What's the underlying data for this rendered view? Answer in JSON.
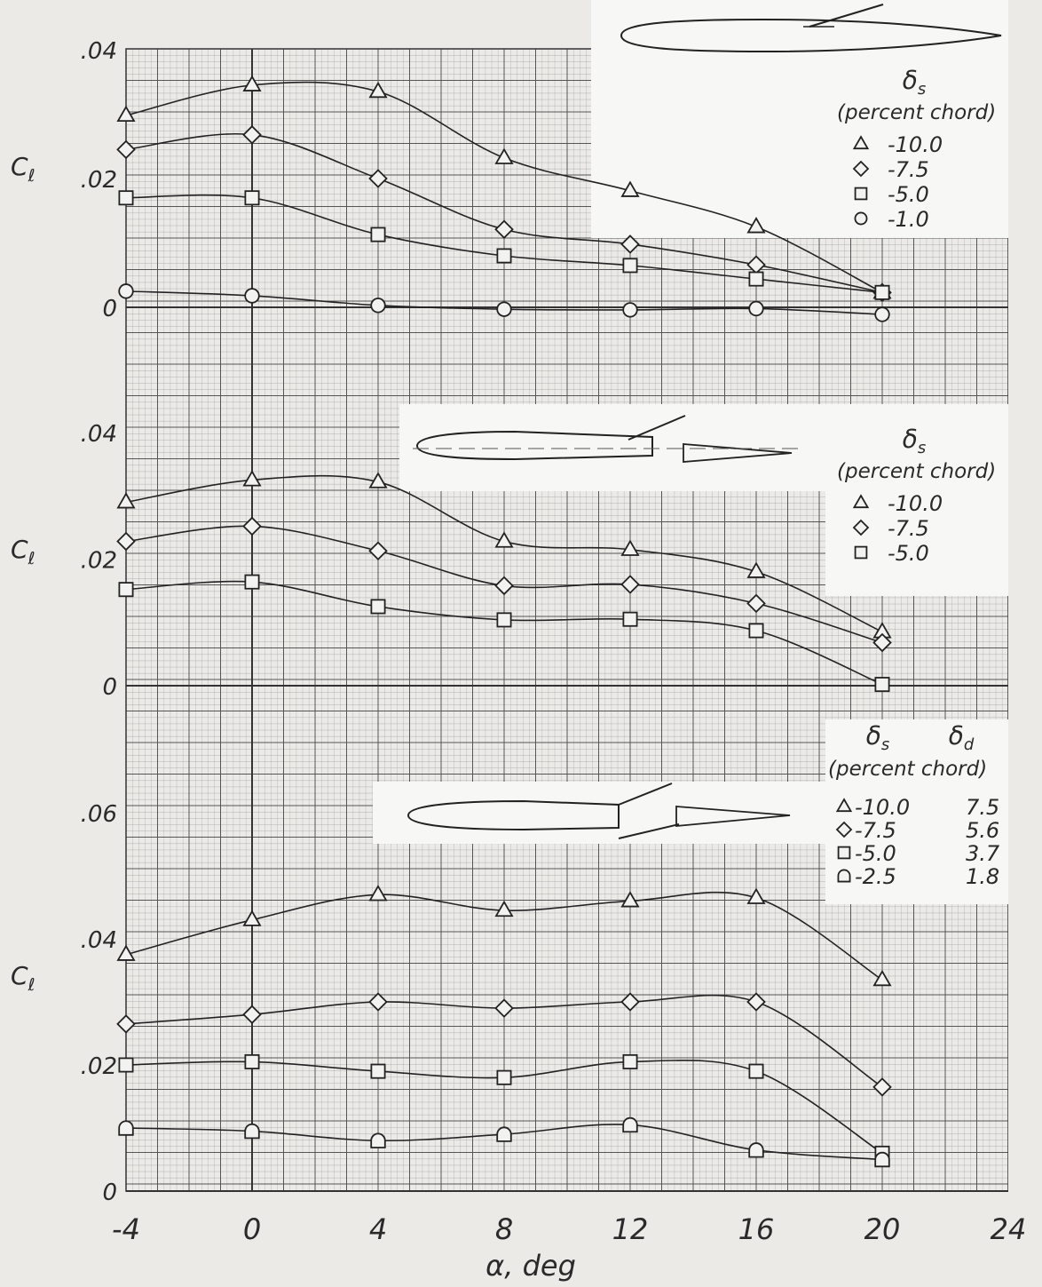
{
  "colors": {
    "paper": "#ebeae7",
    "grid_minor": "#9a9a9a",
    "grid_major": "#555555",
    "ink": "#2a2a2a",
    "inset_bg": "#f7f7f5"
  },
  "chart_data": [
    {
      "type": "line",
      "panel": "top",
      "xlabel": "α, deg",
      "ylabel": "Cl",
      "x_ticks": [
        "-4",
        "0",
        "4",
        "8",
        "12",
        "16",
        "20",
        "24"
      ],
      "y_ticks": [
        "0",
        ".02",
        ".04"
      ],
      "xlim": [
        -4,
        24
      ],
      "ylim": [
        -0.0025,
        0.04
      ],
      "grid": true,
      "legend": {
        "position": "top-right",
        "title": "δs",
        "subtitle": "(percent chord)",
        "entries": [
          {
            "marker": "triangle",
            "label": "-10.0"
          },
          {
            "marker": "diamond",
            "label": "-7.5"
          },
          {
            "marker": "square",
            "label": "-5.0"
          },
          {
            "marker": "circle",
            "label": "-1.0"
          }
        ]
      },
      "x": [
        -4,
        0,
        4,
        8,
        12,
        16,
        20
      ],
      "series": [
        {
          "name": "-10.0",
          "marker": "triangle",
          "values": [
            0.0298,
            0.0345,
            0.0335,
            0.0232,
            0.0181,
            0.0125,
            0.0023
          ]
        },
        {
          "name": "-7.5",
          "marker": "diamond",
          "values": [
            0.0245,
            0.0268,
            0.02,
            0.0121,
            0.0098,
            0.0066,
            0.0023
          ]
        },
        {
          "name": "-5.0",
          "marker": "square",
          "values": [
            0.017,
            0.017,
            0.0113,
            0.008,
            0.0065,
            0.0044,
            0.0023
          ]
        },
        {
          "name": "-1.0",
          "marker": "circle",
          "values": [
            0.0025,
            0.0018,
            0.0003,
            -0.0003,
            -0.0004,
            -0.0002,
            -0.0011
          ]
        }
      ]
    },
    {
      "type": "line",
      "panel": "middle",
      "ylabel": "Cl",
      "y_ticks": [
        "0",
        ".02",
        ".04"
      ],
      "xlim": [
        -4,
        24
      ],
      "ylim": [
        -0.0055,
        0.04
      ],
      "grid": true,
      "legend": {
        "position": "top-right",
        "title": "δs",
        "subtitle": "(percent chord)",
        "entries": [
          {
            "marker": "triangle",
            "label": "-10.0"
          },
          {
            "marker": "diamond",
            "label": "-7.5"
          },
          {
            "marker": "square",
            "label": "-5.0"
          }
        ]
      },
      "x": [
        -4,
        0,
        4,
        8,
        12,
        16,
        20
      ],
      "series": [
        {
          "name": "-10.0",
          "marker": "triangle",
          "values": [
            0.029,
            0.0325,
            0.0322,
            0.0228,
            0.0215,
            0.018,
            0.0085
          ]
        },
        {
          "name": "-7.5",
          "marker": "diamond",
          "values": [
            0.0228,
            0.0252,
            0.0213,
            0.0158,
            0.016,
            0.013,
            0.0068
          ]
        },
        {
          "name": "-5.0",
          "marker": "square",
          "values": [
            0.0152,
            0.0164,
            0.0125,
            0.0104,
            0.0105,
            0.0087,
            0.0002
          ]
        }
      ]
    },
    {
      "type": "line",
      "panel": "bottom",
      "ylabel": "Cl",
      "y_ticks": [
        "0",
        ".02",
        ".04",
        ".06"
      ],
      "xlim": [
        -4,
        24
      ],
      "ylim": [
        0,
        0.072
      ],
      "grid": true,
      "legend": {
        "position": "top-right",
        "title": "δs",
        "title2": "δd",
        "subtitle": "(percent chord)",
        "entries": [
          {
            "marker": "triangle",
            "label": "-10.0",
            "value2": "7.5"
          },
          {
            "marker": "diamond",
            "label": "-7.5",
            "value2": "5.6"
          },
          {
            "marker": "square",
            "label": "-5.0",
            "value2": "3.7"
          },
          {
            "marker": "semicircle",
            "label": "-2.5",
            "value2": "1.8"
          }
        ]
      },
      "x": [
        -4,
        0,
        4,
        8,
        12,
        16,
        20
      ],
      "series": [
        {
          "name": "-10.0",
          "marker": "triangle",
          "values": [
            0.0375,
            0.043,
            0.047,
            0.0445,
            0.046,
            0.0465,
            0.0335
          ]
        },
        {
          "name": "-7.5",
          "marker": "diamond",
          "values": [
            0.0265,
            0.028,
            0.03,
            0.029,
            0.03,
            0.03,
            0.0165
          ]
        },
        {
          "name": "-5.0",
          "marker": "square",
          "values": [
            0.02,
            0.0205,
            0.019,
            0.018,
            0.0205,
            0.019,
            0.006
          ]
        },
        {
          "name": "-2.5",
          "marker": "semicircle",
          "values": [
            0.01,
            0.0095,
            0.008,
            0.009,
            0.0105,
            0.0065,
            0.005
          ]
        }
      ]
    }
  ]
}
